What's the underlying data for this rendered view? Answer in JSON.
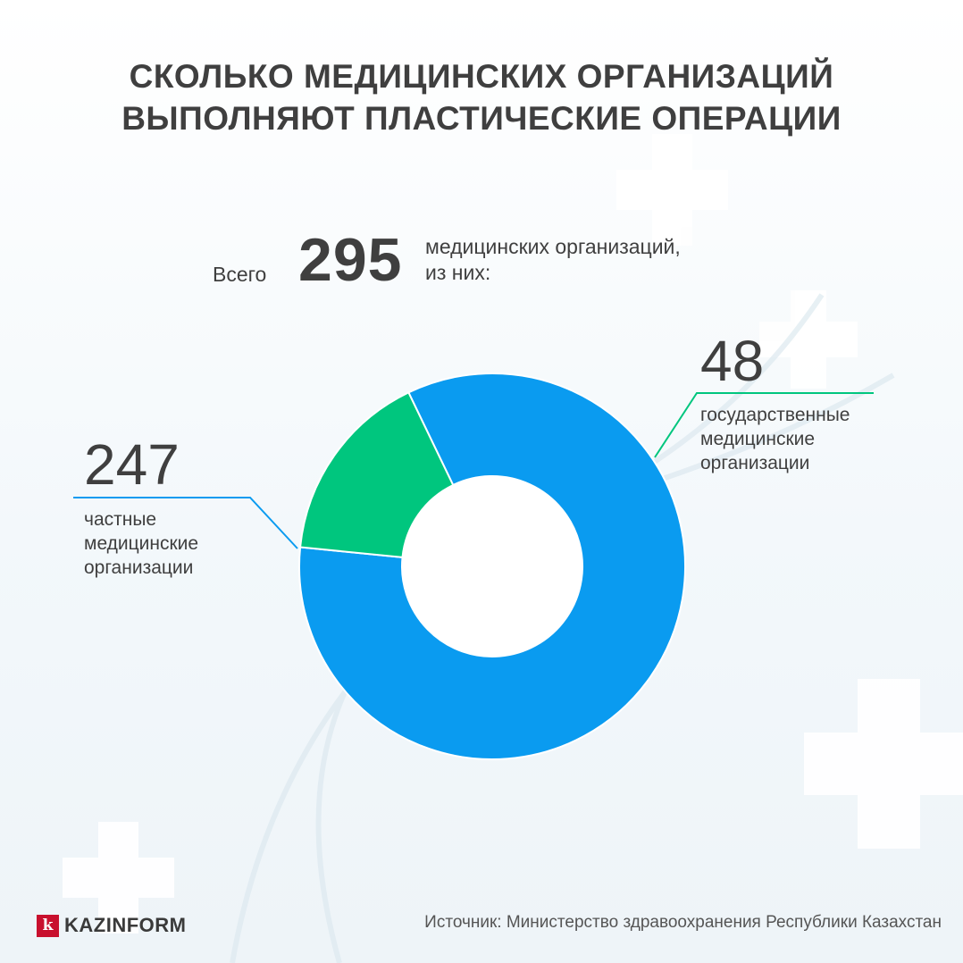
{
  "title_lines": [
    "СКОЛЬКО МЕДИЦИНСКИХ ОРГАНИЗАЦИЙ",
    "ВЫПОЛНЯЮТ ПЛАСТИЧЕСКИЕ ОПЕРАЦИИ"
  ],
  "total": {
    "prefix": "Всего",
    "value": "295",
    "suffix_lines": [
      "медицинских организаций,",
      "из них:"
    ]
  },
  "chart_data": {
    "type": "pie",
    "style": "donut",
    "slices": [
      {
        "label_lines": [
          "частные",
          "медицинские",
          "организации"
        ],
        "value": 247,
        "value_text": "247",
        "color": "#0a9bf0"
      },
      {
        "label_lines": [
          "государственные",
          "медицинские",
          "организации"
        ],
        "value": 48,
        "value_text": "48",
        "color": "#00c67e"
      }
    ]
  },
  "logo": {
    "mark": "k",
    "text": "KAZINFORM",
    "color": "#c8102e"
  },
  "source": "Источник: Министерство здравоохранения Республики Казахстан"
}
